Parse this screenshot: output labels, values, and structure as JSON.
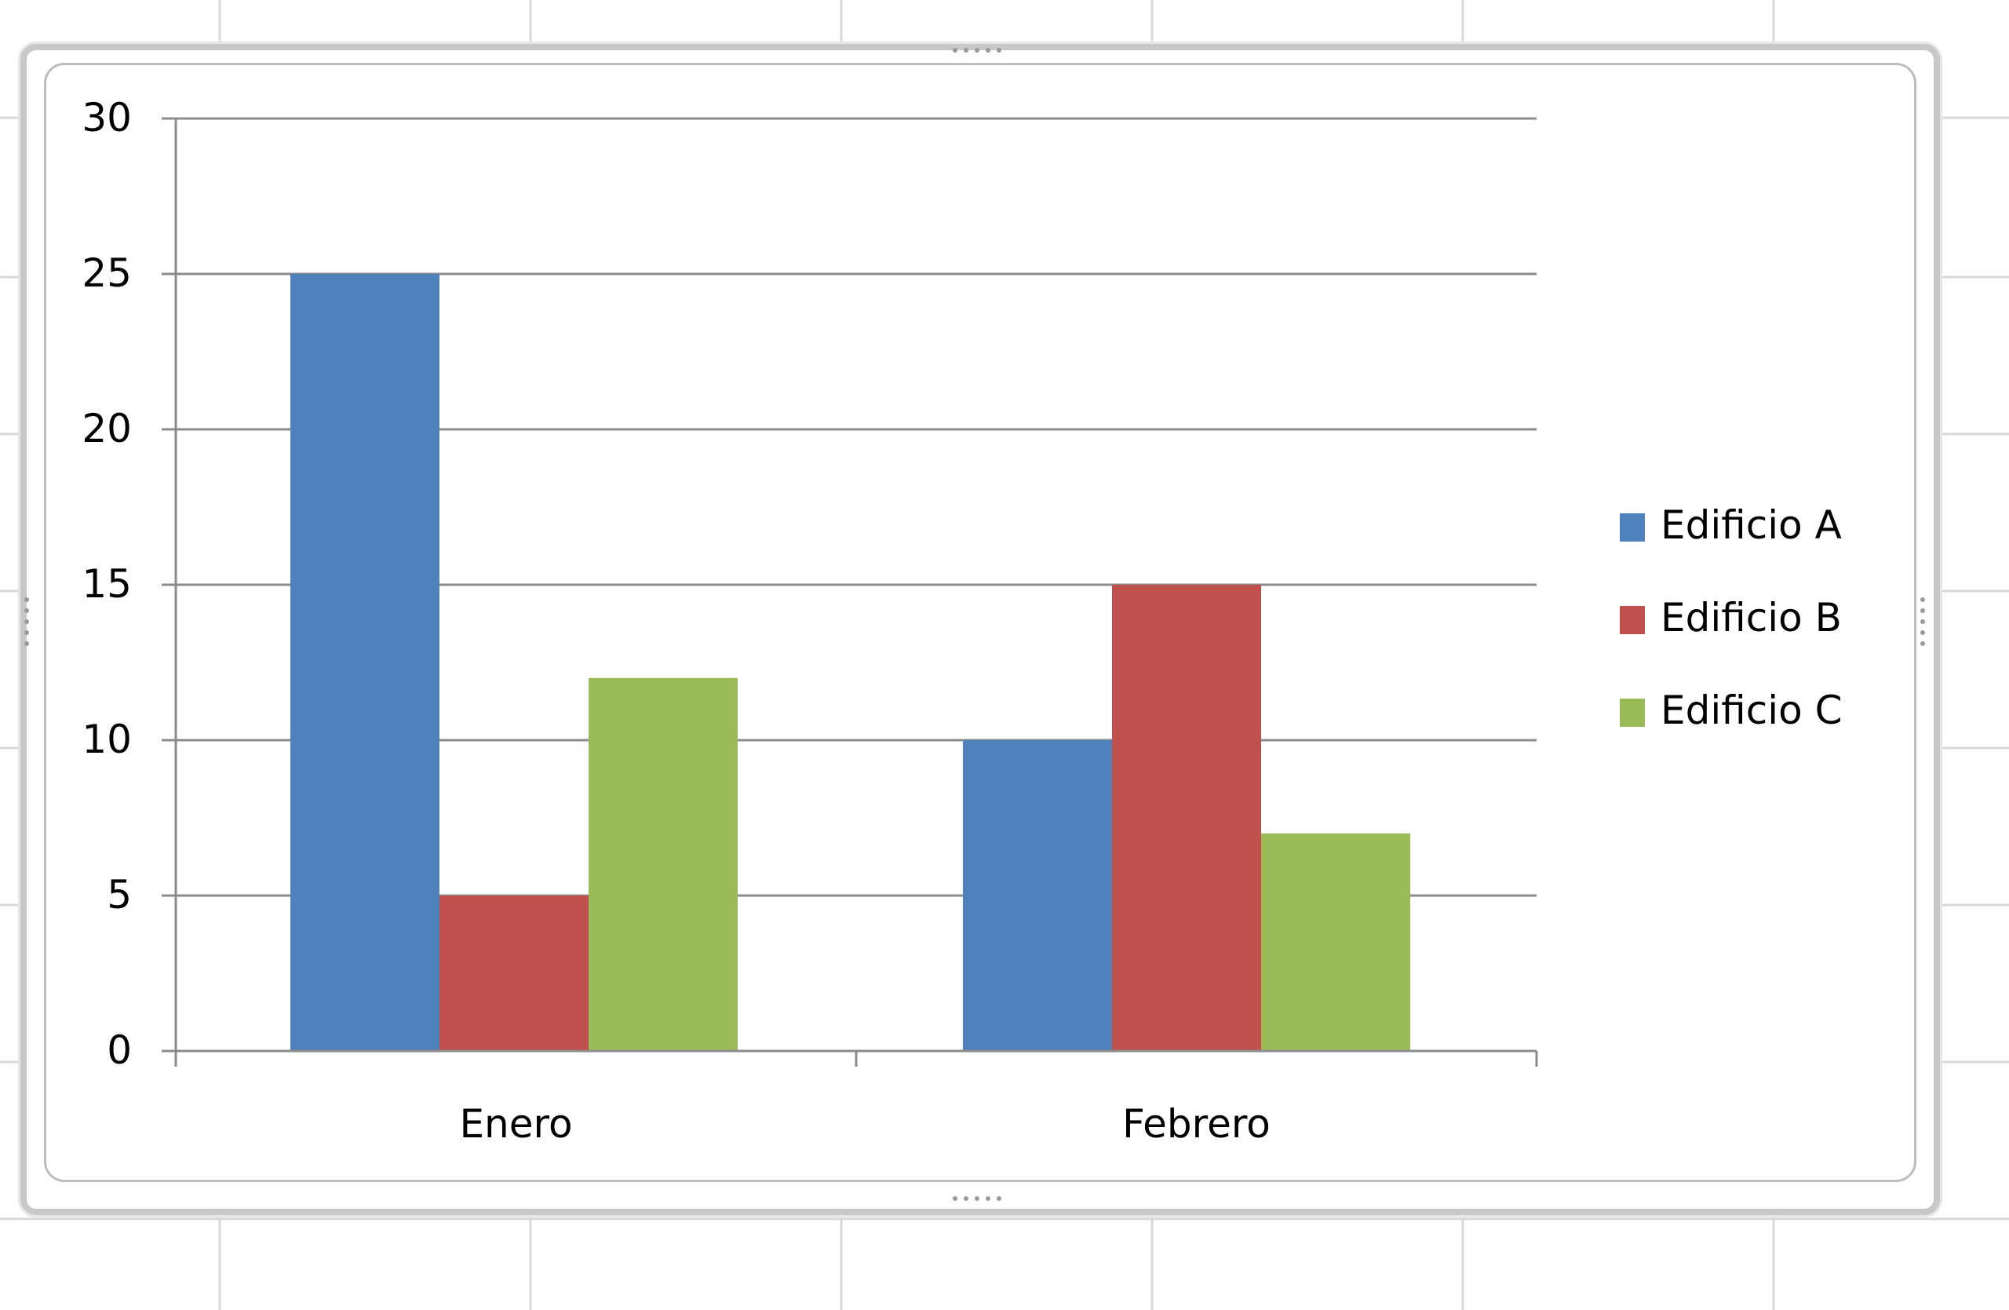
{
  "chart_data": {
    "type": "bar",
    "categories": [
      "Enero",
      "Febrero"
    ],
    "series": [
      {
        "name": "Edificio A",
        "values": [
          25,
          10
        ],
        "color": "#4f81bd"
      },
      {
        "name": "Edificio B",
        "values": [
          5,
          15
        ],
        "color": "#c0504d"
      },
      {
        "name": "Edificio C",
        "values": [
          12,
          7
        ],
        "color": "#9bbb59"
      }
    ],
    "ylim": [
      0,
      30
    ],
    "yticks": [
      0,
      5,
      10,
      15,
      20,
      25,
      30
    ],
    "ytick_labels": [
      "0",
      "5",
      "10",
      "15",
      "20",
      "25",
      "30"
    ],
    "title": "",
    "xlabel": "",
    "ylabel": "",
    "grid": true,
    "legend_position": "right"
  },
  "colors": {
    "gridline": "#8c8c8c",
    "axis": "#8c8c8c",
    "cell_border": "#d9d9d9",
    "text": "#000000"
  }
}
